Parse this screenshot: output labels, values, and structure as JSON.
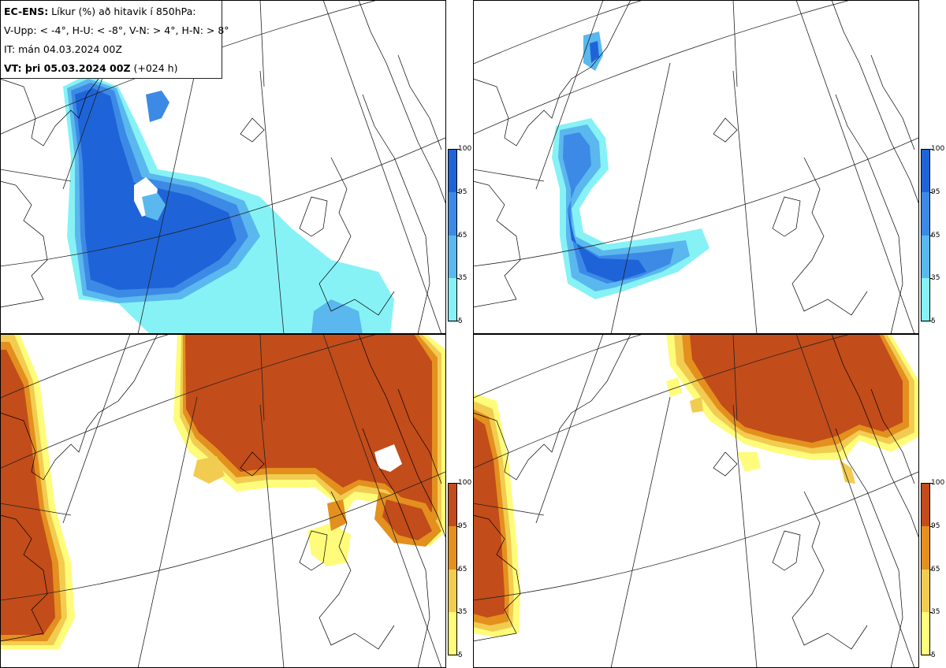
{
  "header": {
    "line1_bold": "EC-ENS:",
    "line1_text": " Líkur (%) að hitavik í 850hPa:",
    "line2": "V-Upp: < -4°, H-U: < -8°, V-N: > 4°, H-N: > 8°",
    "line3": "IT: mán 04.03.2024 00Z",
    "line4_bold": "VT: þri 05.03.2024 00Z",
    "line4_text": " (+024 h)"
  },
  "panels": [
    {
      "id": "V-Upp",
      "variable": "P(T850 anomaly < -4°)",
      "scheme": "blue"
    },
    {
      "id": "H-U",
      "variable": "P(T850 anomaly < -8°)",
      "scheme": "blue"
    },
    {
      "id": "V-N",
      "variable": "P(T850 anomaly > 4°)",
      "scheme": "orange"
    },
    {
      "id": "H-N",
      "variable": "P(T850 anomaly > 8°)",
      "scheme": "orange"
    }
  ],
  "colorbar": {
    "ticks": [
      "100",
      "95",
      "65",
      "35",
      "5"
    ],
    "blue_colors": [
      "#1e64d8",
      "#3c8ae6",
      "#5ab8ee",
      "#86f2f6"
    ],
    "orange_colors": [
      "#c24c1a",
      "#e3901e",
      "#f2cc50",
      "#fefc7a"
    ]
  }
}
